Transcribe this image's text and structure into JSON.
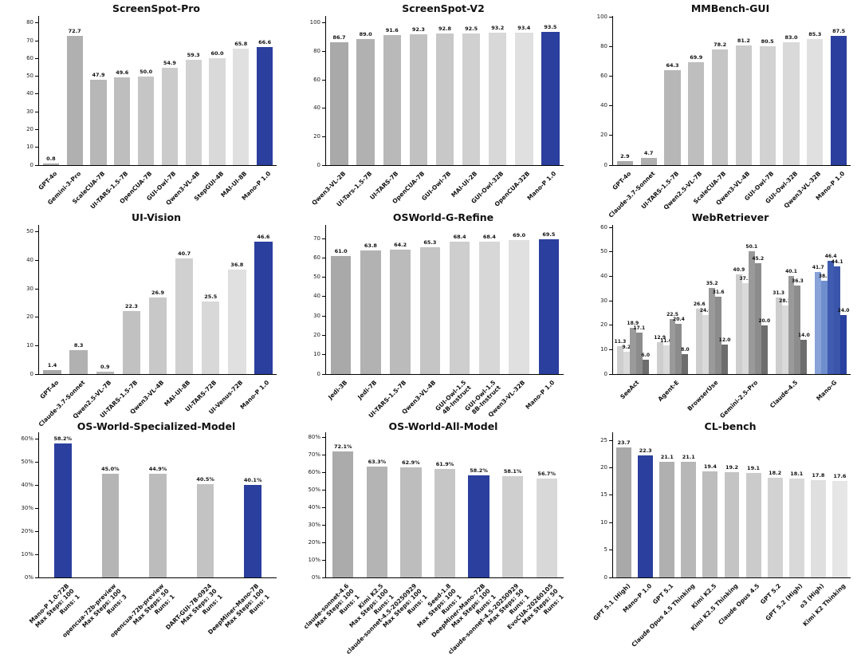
{
  "figure": {
    "background": "#ffffff",
    "highlight_color": "#2b3f9e"
  },
  "chart_data": [
    {
      "title": "ScreenSpot-Pro",
      "type": "bar",
      "ylim": [
        0,
        84
      ],
      "yticks": [
        0,
        10,
        20,
        30,
        40,
        50,
        60,
        70,
        80
      ],
      "ytick_suffix": "",
      "value_suffix": "",
      "bar_width_ratio": 0.68,
      "bars": [
        {
          "label": "GPT-4o",
          "value": 0.8,
          "color": "#a9a9a9"
        },
        {
          "label": "Gemini-3-Pro",
          "value": 72.7,
          "color": "#b0b0b0"
        },
        {
          "label": "ScaleCUA-7B",
          "value": 47.9,
          "color": "#b7b7b7"
        },
        {
          "label": "UI-TARS-1.5-7B",
          "value": 49.6,
          "color": "#bebebe"
        },
        {
          "label": "OpenCUA-7B",
          "value": 50.0,
          "color": "#c5c5c5"
        },
        {
          "label": "GUI-Owl-7B",
          "value": 54.9,
          "color": "#cbcbcb"
        },
        {
          "label": "Qwen3-VL-4B",
          "value": 59.3,
          "color": "#d2d2d2"
        },
        {
          "label": "StepGUI-4B",
          "value": 60.0,
          "color": "#d9d9d9"
        },
        {
          "label": "MAI-UI-8B",
          "value": 65.8,
          "color": "#e0e0e0"
        },
        {
          "label": "Mano-P 1.0",
          "value": 66.6,
          "color": "#2b3f9e"
        }
      ]
    },
    {
      "title": "ScreenSpot-V2",
      "type": "bar",
      "ylim": [
        0,
        105
      ],
      "yticks": [
        0,
        20,
        40,
        60,
        80,
        100
      ],
      "ytick_suffix": "",
      "value_suffix": "",
      "bar_width_ratio": 0.68,
      "bars": [
        {
          "label": "Qwen3-VL-2B",
          "value": 86.7,
          "color": "#a9a9a9"
        },
        {
          "label": "UI-Tars-1.5-7B",
          "value": 89.0,
          "color": "#b1b1b1"
        },
        {
          "label": "UI-TARS-7B",
          "value": 91.6,
          "color": "#b9b9b9"
        },
        {
          "label": "OpenCUA-7B",
          "value": 92.3,
          "color": "#c1c1c1"
        },
        {
          "label": "GUI-Owl-7B",
          "value": 92.8,
          "color": "#c8c8c8"
        },
        {
          "label": "MAI-UI-2B",
          "value": 92.5,
          "color": "#d0d0d0"
        },
        {
          "label": "GUI-Owl-32B",
          "value": 93.2,
          "color": "#d8d8d8"
        },
        {
          "label": "OpenCUA-32B",
          "value": 93.4,
          "color": "#e0e0e0"
        },
        {
          "label": "Mano-P 1.0",
          "value": 93.5,
          "color": "#2b3f9e"
        }
      ]
    },
    {
      "title": "MMBench-GUI",
      "type": "bar",
      "ylim": [
        0,
        101
      ],
      "yticks": [
        0,
        20,
        40,
        60,
        80,
        100
      ],
      "ytick_suffix": "",
      "value_suffix": "",
      "bar_width_ratio": 0.68,
      "bars": [
        {
          "label": "GPT-4o",
          "value": 2.9,
          "color": "#a9a9a9"
        },
        {
          "label": "Claude-3.7-Sonnet",
          "value": 4.7,
          "color": "#b0b0b0"
        },
        {
          "label": "UI-TARS-1.5-7B",
          "value": 64.3,
          "color": "#b7b7b7"
        },
        {
          "label": "Qwen2.5-VL-7B",
          "value": 69.9,
          "color": "#bebebe"
        },
        {
          "label": "ScaleCUA-7B",
          "value": 78.2,
          "color": "#c5c5c5"
        },
        {
          "label": "Qwen3-VL-4B",
          "value": 81.2,
          "color": "#cbcbcb"
        },
        {
          "label": "GUI-Owl-7B",
          "value": 80.5,
          "color": "#d2d2d2"
        },
        {
          "label": "GUI-Owl-32B",
          "value": 83.0,
          "color": "#d9d9d9"
        },
        {
          "label": "Qwen3-VL-32B",
          "value": 85.3,
          "color": "#e0e0e0"
        },
        {
          "label": "Mano-P 1.0",
          "value": 87.5,
          "color": "#2b3f9e"
        }
      ]
    },
    {
      "title": "UI-Vision",
      "type": "bar",
      "ylim": [
        0,
        52.5
      ],
      "yticks": [
        0,
        10,
        20,
        30,
        40,
        50
      ],
      "ytick_suffix": "",
      "value_suffix": "",
      "bar_width_ratio": 0.68,
      "bars": [
        {
          "label": "GPT-4o",
          "value": 1.4,
          "color": "#a9a9a9"
        },
        {
          "label": "Claude-3.7-Sonnet",
          "value": 8.3,
          "color": "#b1b1b1"
        },
        {
          "label": "Qwen2.5-VL-7B",
          "value": 0.9,
          "color": "#b9b9b9"
        },
        {
          "label": "UI-TARS-1.5-7B",
          "value": 22.3,
          "color": "#c1c1c1"
        },
        {
          "label": "Qwen3-VL-4B",
          "value": 26.9,
          "color": "#c8c8c8"
        },
        {
          "label": "MAI-UI-8B",
          "value": 40.7,
          "color": "#d0d0d0"
        },
        {
          "label": "UI-TARS-72B",
          "value": 25.5,
          "color": "#d8d8d8"
        },
        {
          "label": "UI-Venus-72B",
          "value": 36.8,
          "color": "#e0e0e0"
        },
        {
          "label": "Mano-P 1.0",
          "value": 46.6,
          "color": "#2b3f9e"
        }
      ]
    },
    {
      "title": "OSWorld-G-Refine",
      "type": "bar",
      "ylim": [
        0,
        77
      ],
      "yticks": [
        0,
        10,
        20,
        30,
        40,
        50,
        60,
        70
      ],
      "ytick_suffix": "",
      "value_suffix": "",
      "bar_width_ratio": 0.68,
      "bars": [
        {
          "label": "Jedi-3B",
          "value": 61.0,
          "color": "#a9a9a9"
        },
        {
          "label": "Jedi-7B",
          "value": 63.8,
          "color": "#b2b2b2"
        },
        {
          "label": "UI-TARS-1.5-7B",
          "value": 64.2,
          "color": "#bbbbbb"
        },
        {
          "label": "Qwen3-VL-4B",
          "value": 65.3,
          "color": "#c5c5c5"
        },
        {
          "label": "GUI-Owl-1.5\n4B-Instruct",
          "value": 68.4,
          "color": "#cecece"
        },
        {
          "label": "GUI-Owl-1.5\n8B-Instruct",
          "value": 68.4,
          "color": "#d7d7d7"
        },
        {
          "label": "Qwen3-VL-32B",
          "value": 69.0,
          "color": "#e0e0e0"
        },
        {
          "label": "Mano-P 1.0",
          "value": 69.5,
          "color": "#2b3f9e"
        }
      ]
    },
    {
      "title": "WebRetriever",
      "type": "grouped-bar",
      "ylim": [
        0,
        61
      ],
      "yticks": [
        0,
        10,
        20,
        30,
        40,
        50,
        60
      ],
      "ytick_suffix": "",
      "value_suffix": "",
      "groups": [
        {
          "label": "SeeAct",
          "values": [
            11.3,
            9.2,
            18.9,
            17.1,
            6.0
          ],
          "colors": [
            "#cecece",
            "#dadada",
            "#9a9a9a",
            "#8c8c8c",
            "#6d6d6d"
          ]
        },
        {
          "label": "Agent-E",
          "values": [
            12.9,
            11.6,
            22.5,
            20.4,
            8.0
          ],
          "colors": [
            "#cecece",
            "#dadada",
            "#9a9a9a",
            "#8c8c8c",
            "#6d6d6d"
          ]
        },
        {
          "label": "BrowserUse",
          "values": [
            26.6,
            24.0,
            35.2,
            31.6,
            12.0
          ],
          "colors": [
            "#cecece",
            "#dadada",
            "#9a9a9a",
            "#8c8c8c",
            "#6d6d6d"
          ]
        },
        {
          "label": "Gemini-2.5-Pro",
          "values": [
            40.9,
            37.1,
            50.1,
            45.2,
            20.0
          ],
          "colors": [
            "#cecece",
            "#dadada",
            "#9a9a9a",
            "#8c8c8c",
            "#6d6d6d"
          ]
        },
        {
          "label": "Claude-4.5",
          "values": [
            31.3,
            28.1,
            40.1,
            36.3,
            14.0
          ],
          "colors": [
            "#cecece",
            "#dadada",
            "#9a9a9a",
            "#8c8c8c",
            "#6d6d6d"
          ]
        },
        {
          "label": "Mano-G",
          "values": [
            41.7,
            38.3,
            46.4,
            44.1,
            24.0
          ],
          "colors": [
            "#88a3d8",
            "#6f8ecd",
            "#3f5cb0",
            "#3a55aa",
            "#2a41a0"
          ]
        }
      ]
    },
    {
      "title": "OS-World-Specialized-Model",
      "type": "bar",
      "ylim": [
        0,
        63
      ],
      "yticks": [
        0,
        10,
        20,
        30,
        40,
        50,
        60
      ],
      "ytick_suffix": "%",
      "value_suffix": "%",
      "bar_width_ratio": 0.36,
      "bars": [
        {
          "label": "Mano-P 1.0-72B\nMax Steps: 100\nRuns: 1",
          "value": 58.2,
          "color": "#2b3f9e"
        },
        {
          "label": "opencua-72b-preview\nMax Steps: 100\nRuns: 3",
          "value": 45.0,
          "color": "#b5b5b5"
        },
        {
          "label": "opencua-72b-preview\nMax Steps: 50\nRuns: 1",
          "value": 44.9,
          "color": "#bcbcbc"
        },
        {
          "label": "DART-GUI-7B-0924\nMax Steps: 30\nRuns: 1",
          "value": 40.5,
          "color": "#c3c3c3"
        },
        {
          "label": "DeepMiner-Mano-7B\nMax Steps: 100\nRuns: 1",
          "value": 40.1,
          "color": "#2b3f9e"
        }
      ]
    },
    {
      "title": "OS-World-All-Model",
      "type": "bar",
      "ylim": [
        0,
        83
      ],
      "yticks": [
        0,
        10,
        20,
        30,
        40,
        50,
        60,
        70,
        80
      ],
      "ytick_suffix": "%",
      "value_suffix": "%",
      "bar_width_ratio": 0.62,
      "bars": [
        {
          "label": "claude-sonnet-4.6\nMax Steps: 100\nRuns: 1",
          "value": 72.1,
          "color": "#ababab"
        },
        {
          "label": "Kimi K2.5\nMax Steps: 100\nRuns: 1",
          "value": 63.3,
          "color": "#b4b4b4"
        },
        {
          "label": "claude-sonnet-4.5-20250929\nMax Steps: 100\nRuns: 1",
          "value": 62.9,
          "color": "#bdbdbd"
        },
        {
          "label": "Seed-1.8\nMax Steps: 100\nRuns: 1",
          "value": 61.9,
          "color": "#c6c6c6"
        },
        {
          "label": "DeepMiner-Mano-72B\nMax Steps: 100\nRuns: 1",
          "value": 58.2,
          "color": "#2b3f9e"
        },
        {
          "label": "claude-sonnet-4.5-20250929\nMax Steps: 50\nRuns: 1",
          "value": 58.1,
          "color": "#cfcfcf"
        },
        {
          "label": "EvoCUA-20260105\nMax Steps: 50\nRuns: 1",
          "value": 56.7,
          "color": "#d8d8d8"
        }
      ]
    },
    {
      "title": "CL-bench",
      "type": "bar",
      "ylim": [
        0,
        26.5
      ],
      "yticks": [
        0,
        5,
        10,
        15,
        20,
        25
      ],
      "ytick_suffix": "",
      "value_suffix": "",
      "bar_width_ratio": 0.7,
      "bars": [
        {
          "label": "GPT 5.1 (High)",
          "value": 23.7,
          "color": "#a9a9a9"
        },
        {
          "label": "Mano-P 1.0",
          "value": 22.3,
          "color": "#2b3f9e"
        },
        {
          "label": "GPT 5.1",
          "value": 21.1,
          "color": "#b0b0b0"
        },
        {
          "label": "Claude Opus 4.5 Thinking",
          "value": 21.1,
          "color": "#b7b7b7"
        },
        {
          "label": "Kimi K2.5",
          "value": 19.4,
          "color": "#bdbdbd"
        },
        {
          "label": "Kimi K2.5 Thinking",
          "value": 19.2,
          "color": "#c4c4c4"
        },
        {
          "label": "Claude Opus 4.5",
          "value": 19.1,
          "color": "#cbcbcb"
        },
        {
          "label": "GPT 5.2",
          "value": 18.2,
          "color": "#d2d2d2"
        },
        {
          "label": "GPT 5.2 (High)",
          "value": 18.1,
          "color": "#d9d9d9"
        },
        {
          "label": "o3 (High)",
          "value": 17.8,
          "color": "#dfdfdf"
        },
        {
          "label": "Kimi K2 Thinking",
          "value": 17.6,
          "color": "#e6e6e6"
        }
      ]
    }
  ]
}
